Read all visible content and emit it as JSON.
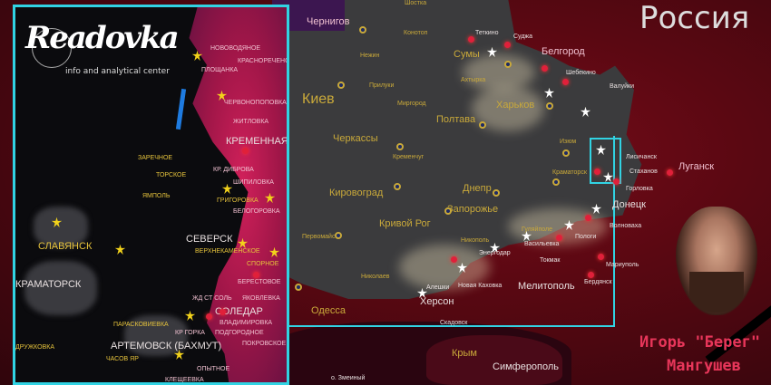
{
  "brand": {
    "logo": "Readovka",
    "tagline": "info and analytical center"
  },
  "country_label": "Россия",
  "person": {
    "name_line1": "Игорь \"Берег\"",
    "name_line2": "Мангушев"
  },
  "colors": {
    "frame": "#31d3e3",
    "russia": "#5a0812",
    "ukraine": "#3b3b3d",
    "front": "#d0205a",
    "name": "#e8365a"
  },
  "main_map": {
    "cities_large": [
      "Киев",
      "Сумы",
      "Харьков",
      "Полтава",
      "Черкассы",
      "Кировоград",
      "Днепр",
      "Запорожье",
      "Кривой Рог",
      "Херсон",
      "Одесса",
      "Мелитополь",
      "Мариуполь",
      "Донецк",
      "Луганск",
      "Белгород",
      "Чернигов",
      "Симферополь",
      "Крым"
    ],
    "cities_small": [
      "Шостка",
      "Конотоп",
      "Нежин",
      "Прилуки",
      "Ахтырка",
      "Миргород",
      "Кременчуг",
      "Первомайск",
      "Бердянск",
      "Изюм",
      "Краматорск",
      "Суджа",
      "Теткино",
      "Шебекино",
      "Валуйки",
      "Лисичанск",
      "Стаханов",
      "Новая Каховка",
      "Алешки",
      "Скадовск",
      "Энергодар",
      "Васильевка",
      "Токмак",
      "Пологи",
      "Волноваха",
      "Николаев",
      "о. Змеиный",
      "Никополь",
      "Гуляйполе",
      "Горловка"
    ]
  },
  "inset_map": {
    "major": [
      "КРЕМЕННАЯ",
      "СОЛЕДАР",
      "АРТЕМОВСК (БАХМУТ)",
      "СЕВЕРСК",
      "КРАМАТОРСК",
      "СЛАВЯНСК"
    ],
    "minor": [
      "НОВОВОДЯНОЕ",
      "ПЛОЩАНКА",
      "КРАСНОРЕЧЕНСКОЕ",
      "ЧЕРВОНОПОПОВКА",
      "ЖИТЛОВКА",
      "КР. ДИБРОВА",
      "ШИПИЛОВКА",
      "ТОРСКОЕ",
      "ЗАРЕЧНОЕ",
      "ЯМПОЛЬ",
      "ГРИГОРОВКА",
      "БЕЛОГОРОВКА",
      "ВЕРХНЕКАМЕНСКОЕ",
      "СПОРНОЕ",
      "БЕРЕСТОВОЕ",
      "ЖД СТ СОЛЬ",
      "ЯКОВЛЕВКА",
      "ВЛАДИМИРОВКА",
      "КР ГОРКА",
      "ПОДГОРОДНОЕ",
      "ПОКРОВСКОЕ",
      "ЧАСОВ ЯР",
      "КЛЕЩЕЕВКА",
      "ОПЫТНОЕ",
      "ДРУЖКОВКА",
      "ПАРАСКОВИЕВКА"
    ]
  }
}
